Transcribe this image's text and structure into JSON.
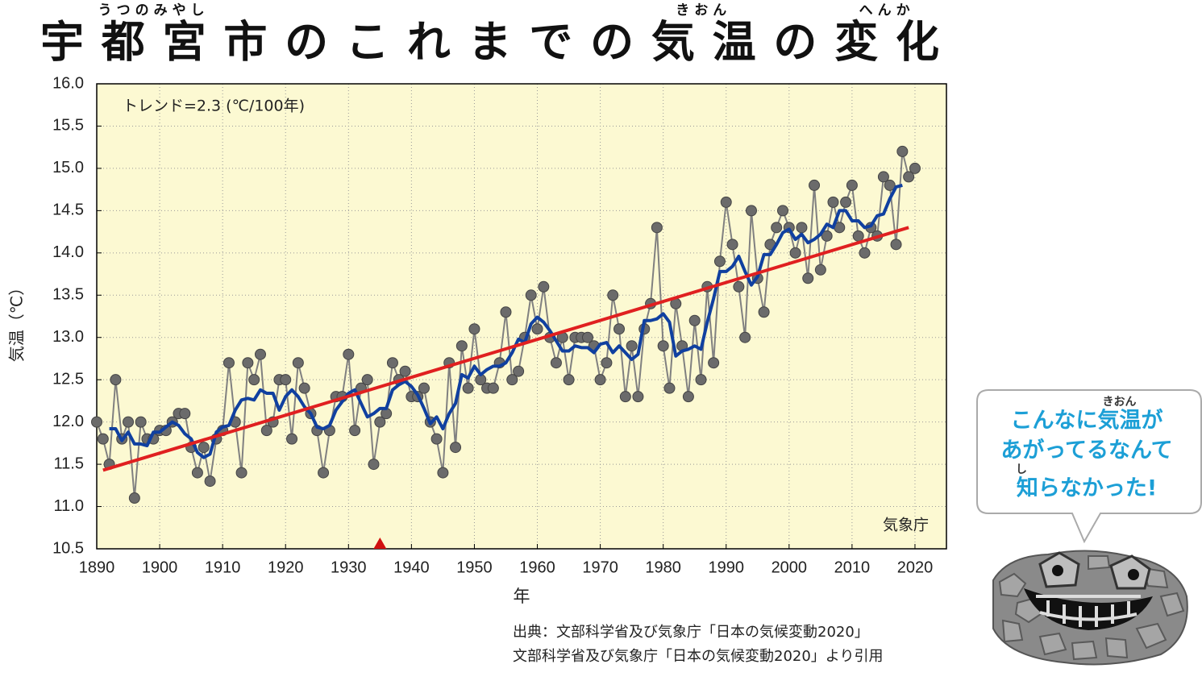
{
  "chart_data": {
    "type": "line",
    "title": "宇都宮市のこれまでの気温の変化",
    "title_ruby": [
      {
        "base": "宇都宮市",
        "reading": "うつのみやし"
      },
      {
        "base": "気温",
        "reading": "きおん"
      },
      {
        "base": "変化",
        "reading": "へんか"
      }
    ],
    "x_label": "年",
    "y_label": "気温（℃）",
    "annotations": [
      "トレンド=2.3 (℃/100年)",
      "気象庁"
    ],
    "x": [
      1890,
      1891,
      1892,
      1893,
      1894,
      1895,
      1896,
      1897,
      1898,
      1899,
      1900,
      1901,
      1902,
      1903,
      1904,
      1905,
      1906,
      1907,
      1908,
      1909,
      1910,
      1911,
      1912,
      1913,
      1914,
      1915,
      1916,
      1917,
      1918,
      1919,
      1920,
      1921,
      1922,
      1923,
      1924,
      1925,
      1926,
      1927,
      1928,
      1929,
      1930,
      1931,
      1932,
      1933,
      1934,
      1935,
      1936,
      1937,
      1938,
      1939,
      1940,
      1941,
      1942,
      1943,
      1944,
      1945,
      1946,
      1947,
      1948,
      1949,
      1950,
      1951,
      1952,
      1953,
      1954,
      1955,
      1956,
      1957,
      1958,
      1959,
      1960,
      1961,
      1962,
      1963,
      1964,
      1965,
      1966,
      1967,
      1968,
      1969,
      1970,
      1971,
      1972,
      1973,
      1974,
      1975,
      1976,
      1977,
      1978,
      1979,
      1980,
      1981,
      1982,
      1983,
      1984,
      1985,
      1986,
      1987,
      1988,
      1989,
      1990,
      1991,
      1992,
      1993,
      1994,
      1995,
      1996,
      1997,
      1998,
      1999,
      2000,
      2001,
      2002,
      2003,
      2004,
      2005,
      2006,
      2007,
      2008,
      2009,
      2010,
      2011,
      2012,
      2013,
      2014,
      2015,
      2016,
      2017,
      2018,
      2019,
      2020
    ],
    "series": [
      {
        "color": "#6b6b6b",
        "values": [
          12.0,
          11.8,
          11.5,
          12.5,
          11.8,
          12.0,
          11.1,
          12.0,
          11.8,
          11.8,
          11.9,
          11.9,
          12.0,
          12.1,
          12.1,
          11.7,
          11.4,
          11.7,
          11.3,
          11.8,
          11.9,
          12.7,
          12.0,
          11.4,
          12.7,
          12.5,
          12.8,
          11.9,
          12.0,
          12.5,
          12.5,
          11.8,
          12.7,
          12.4,
          12.1,
          11.9,
          11.4,
          11.9,
          12.3,
          12.3,
          12.8,
          11.9,
          12.4,
          12.5,
          11.5,
          12.0,
          12.1,
          12.7,
          12.5,
          12.6,
          12.3,
          12.3,
          12.4,
          12.0,
          11.8,
          11.4,
          12.7,
          11.7,
          12.9,
          12.4,
          13.1,
          12.5,
          12.4,
          12.4,
          12.7,
          13.3,
          12.5,
          12.6,
          13.0,
          13.5,
          13.1,
          13.6,
          13.0,
          12.7,
          13.0,
          12.5,
          13.0,
          13.0,
          13.0,
          12.9,
          12.5,
          12.7,
          13.5,
          13.1,
          12.3,
          12.9,
          12.3,
          13.1,
          13.4,
          14.3,
          12.9,
          12.4,
          13.4,
          12.9,
          12.3,
          13.2,
          12.5,
          13.6,
          12.7,
          13.9,
          14.6,
          14.1,
          13.6,
          13.0,
          14.5,
          13.7,
          13.3,
          14.1,
          14.3,
          14.5,
          14.3,
          14.0,
          14.3,
          13.7,
          14.8,
          13.8,
          14.2,
          14.6,
          14.3,
          14.6,
          14.8,
          14.2,
          14.0,
          14.3,
          14.2,
          14.9,
          14.8,
          14.1,
          15.2,
          14.9,
          15.0
        ]
      },
      {
        "color": "#1040a0",
        "values": [
          null,
          null,
          11.92,
          11.92,
          11.78,
          11.88,
          11.74,
          11.74,
          11.72,
          11.88,
          11.88,
          11.94,
          12.0,
          11.96,
          11.86,
          11.8,
          11.64,
          11.58,
          11.62,
          11.88,
          11.94,
          11.96,
          12.14,
          12.26,
          12.28,
          12.26,
          12.38,
          12.34,
          12.34,
          12.14,
          12.3,
          12.38,
          12.3,
          12.18,
          12.1,
          11.94,
          11.92,
          11.96,
          12.14,
          12.24,
          12.34,
          12.38,
          12.22,
          12.06,
          12.1,
          12.16,
          12.16,
          12.38,
          12.44,
          12.48,
          12.42,
          12.32,
          12.16,
          11.98,
          12.06,
          11.92,
          12.1,
          12.22,
          12.56,
          12.52,
          12.66,
          12.56,
          12.62,
          12.66,
          12.66,
          12.7,
          12.82,
          12.98,
          12.94,
          13.16,
          13.24,
          13.18,
          13.08,
          12.96,
          12.84,
          12.84,
          12.9,
          12.88,
          12.88,
          12.82,
          12.92,
          12.94,
          12.82,
          12.9,
          12.82,
          12.74,
          12.8,
          13.2,
          13.2,
          13.22,
          13.28,
          13.18,
          12.78,
          12.84,
          12.86,
          12.9,
          12.86,
          13.18,
          13.46,
          13.78,
          13.78,
          13.84,
          13.96,
          13.78,
          13.62,
          13.72,
          13.98,
          13.98,
          14.1,
          14.24,
          14.28,
          14.16,
          14.22,
          14.12,
          14.16,
          14.22,
          14.34,
          14.3,
          14.5,
          14.5,
          14.38,
          14.38,
          14.3,
          14.32,
          14.44,
          14.46,
          14.64,
          14.78,
          14.8,
          null,
          null
        ]
      }
    ],
    "trend": {
      "color": "#e02020",
      "x": [
        1891,
        2019
      ],
      "values": [
        11.43,
        14.3
      ]
    },
    "marker_x": 1935,
    "marker_color": "#d01010",
    "xlim": [
      1890,
      2025
    ],
    "ylim": [
      10.5,
      16.0
    ],
    "xticks": [
      1890,
      1900,
      1910,
      1920,
      1930,
      1940,
      1950,
      1960,
      1970,
      1980,
      1990,
      2000,
      2010,
      2020
    ],
    "yticks": [
      10.5,
      {
        "value": 11,
        "label": "11.0"
      },
      11.5,
      {
        "value": 12,
        "label": "12.0"
      },
      12.5,
      {
        "value": 13,
        "label": "13.0"
      },
      13.5,
      {
        "value": 14,
        "label": "14.0"
      },
      14.5,
      {
        "value": 15,
        "label": "15.0"
      },
      15.5,
      {
        "value": 16,
        "label": "16.0"
      }
    ],
    "grid": true,
    "background": "#fcf9d2",
    "sources": [
      "出典：文部科学省及び気象庁「日本の気候変動2020」",
      "文部科学省及び気象庁「日本の気候変動2020」より引用"
    ]
  },
  "bubble": {
    "lines": [
      "こんなに気温が",
      "あがってるなんて",
      "知らなかった!"
    ],
    "ruby": [
      {
        "line": 0,
        "base": "気温",
        "reading": "きおん"
      },
      {
        "line": 2,
        "base": "知",
        "reading": "し"
      }
    ],
    "color": "#1c9fd6"
  }
}
